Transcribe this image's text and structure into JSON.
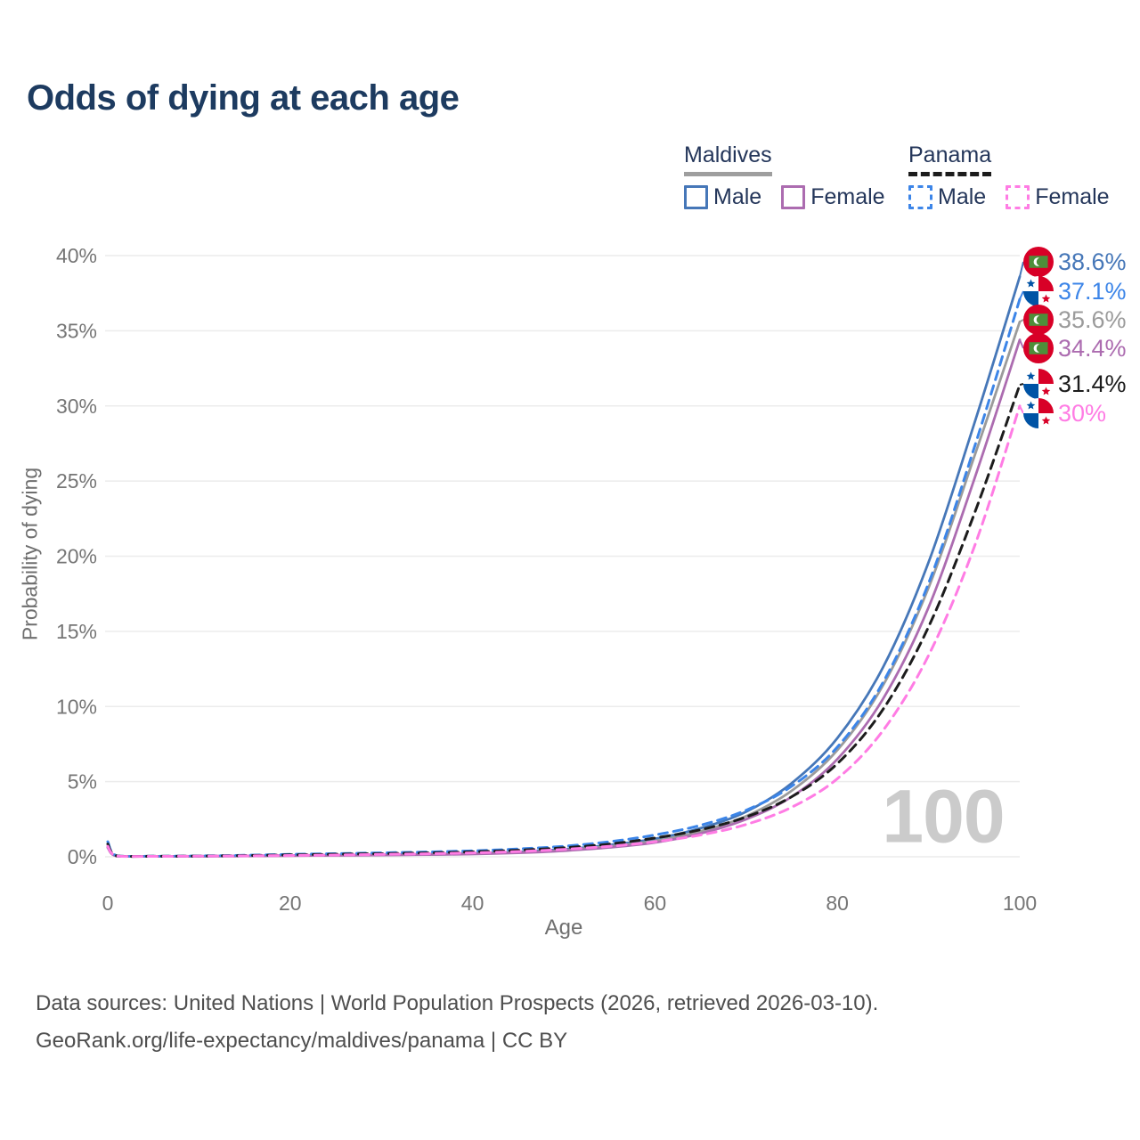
{
  "title": "Odds of dying at each age",
  "legend": {
    "groups": [
      {
        "label": "Maldives",
        "style": "solid",
        "line_color": "#9e9e9e",
        "items": [
          {
            "label": "Male",
            "color": "#4677b8"
          },
          {
            "label": "Female",
            "color": "#ac6cb0"
          }
        ]
      },
      {
        "label": "Panama",
        "style": "dashed",
        "line_color": "#1c1c1c",
        "items": [
          {
            "label": "Male",
            "color": "#3c85e8"
          },
          {
            "label": "Female",
            "color": "#ff7ce4"
          }
        ]
      }
    ]
  },
  "watermark": "100",
  "footer": {
    "line1": "Data sources: United Nations | World Population Prospects (2026, retrieved 2026-03-10).",
    "line2": "GeoRank.org/life-expectancy/maldives/panama | CC BY"
  },
  "chart_data": {
    "type": "line",
    "title": "Odds of dying at each age",
    "xlabel": "Age",
    "ylabel": "Probability of dying",
    "xlim": [
      0,
      100
    ],
    "ylim": [
      0,
      40
    ],
    "x_ticks": [
      0,
      20,
      40,
      60,
      80,
      100
    ],
    "y_ticks": [
      0,
      5,
      10,
      15,
      20,
      25,
      30,
      35,
      40
    ],
    "y_tick_suffix": "%",
    "grid": true,
    "legend_position": "top-right",
    "ages": [
      0,
      1,
      5,
      10,
      15,
      20,
      25,
      30,
      35,
      40,
      45,
      50,
      55,
      60,
      65,
      70,
      75,
      80,
      85,
      90,
      95,
      100
    ],
    "series": [
      {
        "name": "Maldives Male",
        "country": "Maldives",
        "sex": "Male",
        "color": "#4677b8",
        "dash": false,
        "end_label": "38.6%",
        "flag": "maldives",
        "values": [
          0.7,
          0.05,
          0.03,
          0.04,
          0.06,
          0.09,
          0.11,
          0.14,
          0.17,
          0.23,
          0.33,
          0.5,
          0.78,
          1.2,
          1.9,
          3.0,
          4.9,
          7.9,
          12.6,
          19.6,
          28.8,
          38.6
        ]
      },
      {
        "name": "Maldives (both sexes)",
        "country": "Maldives",
        "sex": "Both",
        "color": "#9b9b9b",
        "dash": false,
        "end_label": "35.6%",
        "flag": "maldives",
        "values": [
          0.65,
          0.045,
          0.028,
          0.035,
          0.055,
          0.08,
          0.1,
          0.12,
          0.15,
          0.2,
          0.29,
          0.44,
          0.7,
          1.05,
          1.7,
          2.7,
          4.4,
          7.1,
          11.4,
          17.9,
          26.6,
          35.6
        ]
      },
      {
        "name": "Maldives Female",
        "country": "Maldives",
        "sex": "Female",
        "color": "#ac6cb0",
        "dash": false,
        "end_label": "34.4%",
        "flag": "maldives",
        "values": [
          0.6,
          0.04,
          0.025,
          0.03,
          0.05,
          0.07,
          0.09,
          0.11,
          0.14,
          0.18,
          0.26,
          0.4,
          0.62,
          0.95,
          1.55,
          2.5,
          4.0,
          6.5,
          10.5,
          16.6,
          25.1,
          34.4
        ]
      },
      {
        "name": "Panama Male",
        "country": "Panama",
        "sex": "Male",
        "color": "#3c85e8",
        "dash": true,
        "end_label": "37.1%",
        "flag": "panama",
        "values": [
          1.0,
          0.07,
          0.04,
          0.06,
          0.1,
          0.16,
          0.21,
          0.26,
          0.32,
          0.4,
          0.52,
          0.7,
          1.0,
          1.45,
          2.1,
          3.1,
          4.7,
          7.3,
          11.6,
          18.2,
          27.2,
          37.1
        ]
      },
      {
        "name": "Panama (both sexes)",
        "country": "Panama",
        "sex": "Both",
        "color": "#1c1c1c",
        "dash": true,
        "end_label": "31.4%",
        "flag": "panama",
        "values": [
          0.85,
          0.06,
          0.035,
          0.05,
          0.08,
          0.13,
          0.17,
          0.21,
          0.26,
          0.33,
          0.44,
          0.6,
          0.85,
          1.25,
          1.8,
          2.65,
          4.0,
          6.2,
          9.8,
          15.3,
          22.8,
          31.4
        ]
      },
      {
        "name": "Panama Female",
        "country": "Panama",
        "sex": "Female",
        "color": "#ff7ce4",
        "dash": true,
        "end_label": "30%",
        "flag": "panama",
        "values": [
          0.7,
          0.05,
          0.03,
          0.04,
          0.06,
          0.09,
          0.12,
          0.16,
          0.2,
          0.26,
          0.35,
          0.49,
          0.7,
          1.0,
          1.45,
          2.15,
          3.3,
          5.2,
          8.4,
          13.4,
          20.6,
          30.0
        ]
      }
    ]
  }
}
